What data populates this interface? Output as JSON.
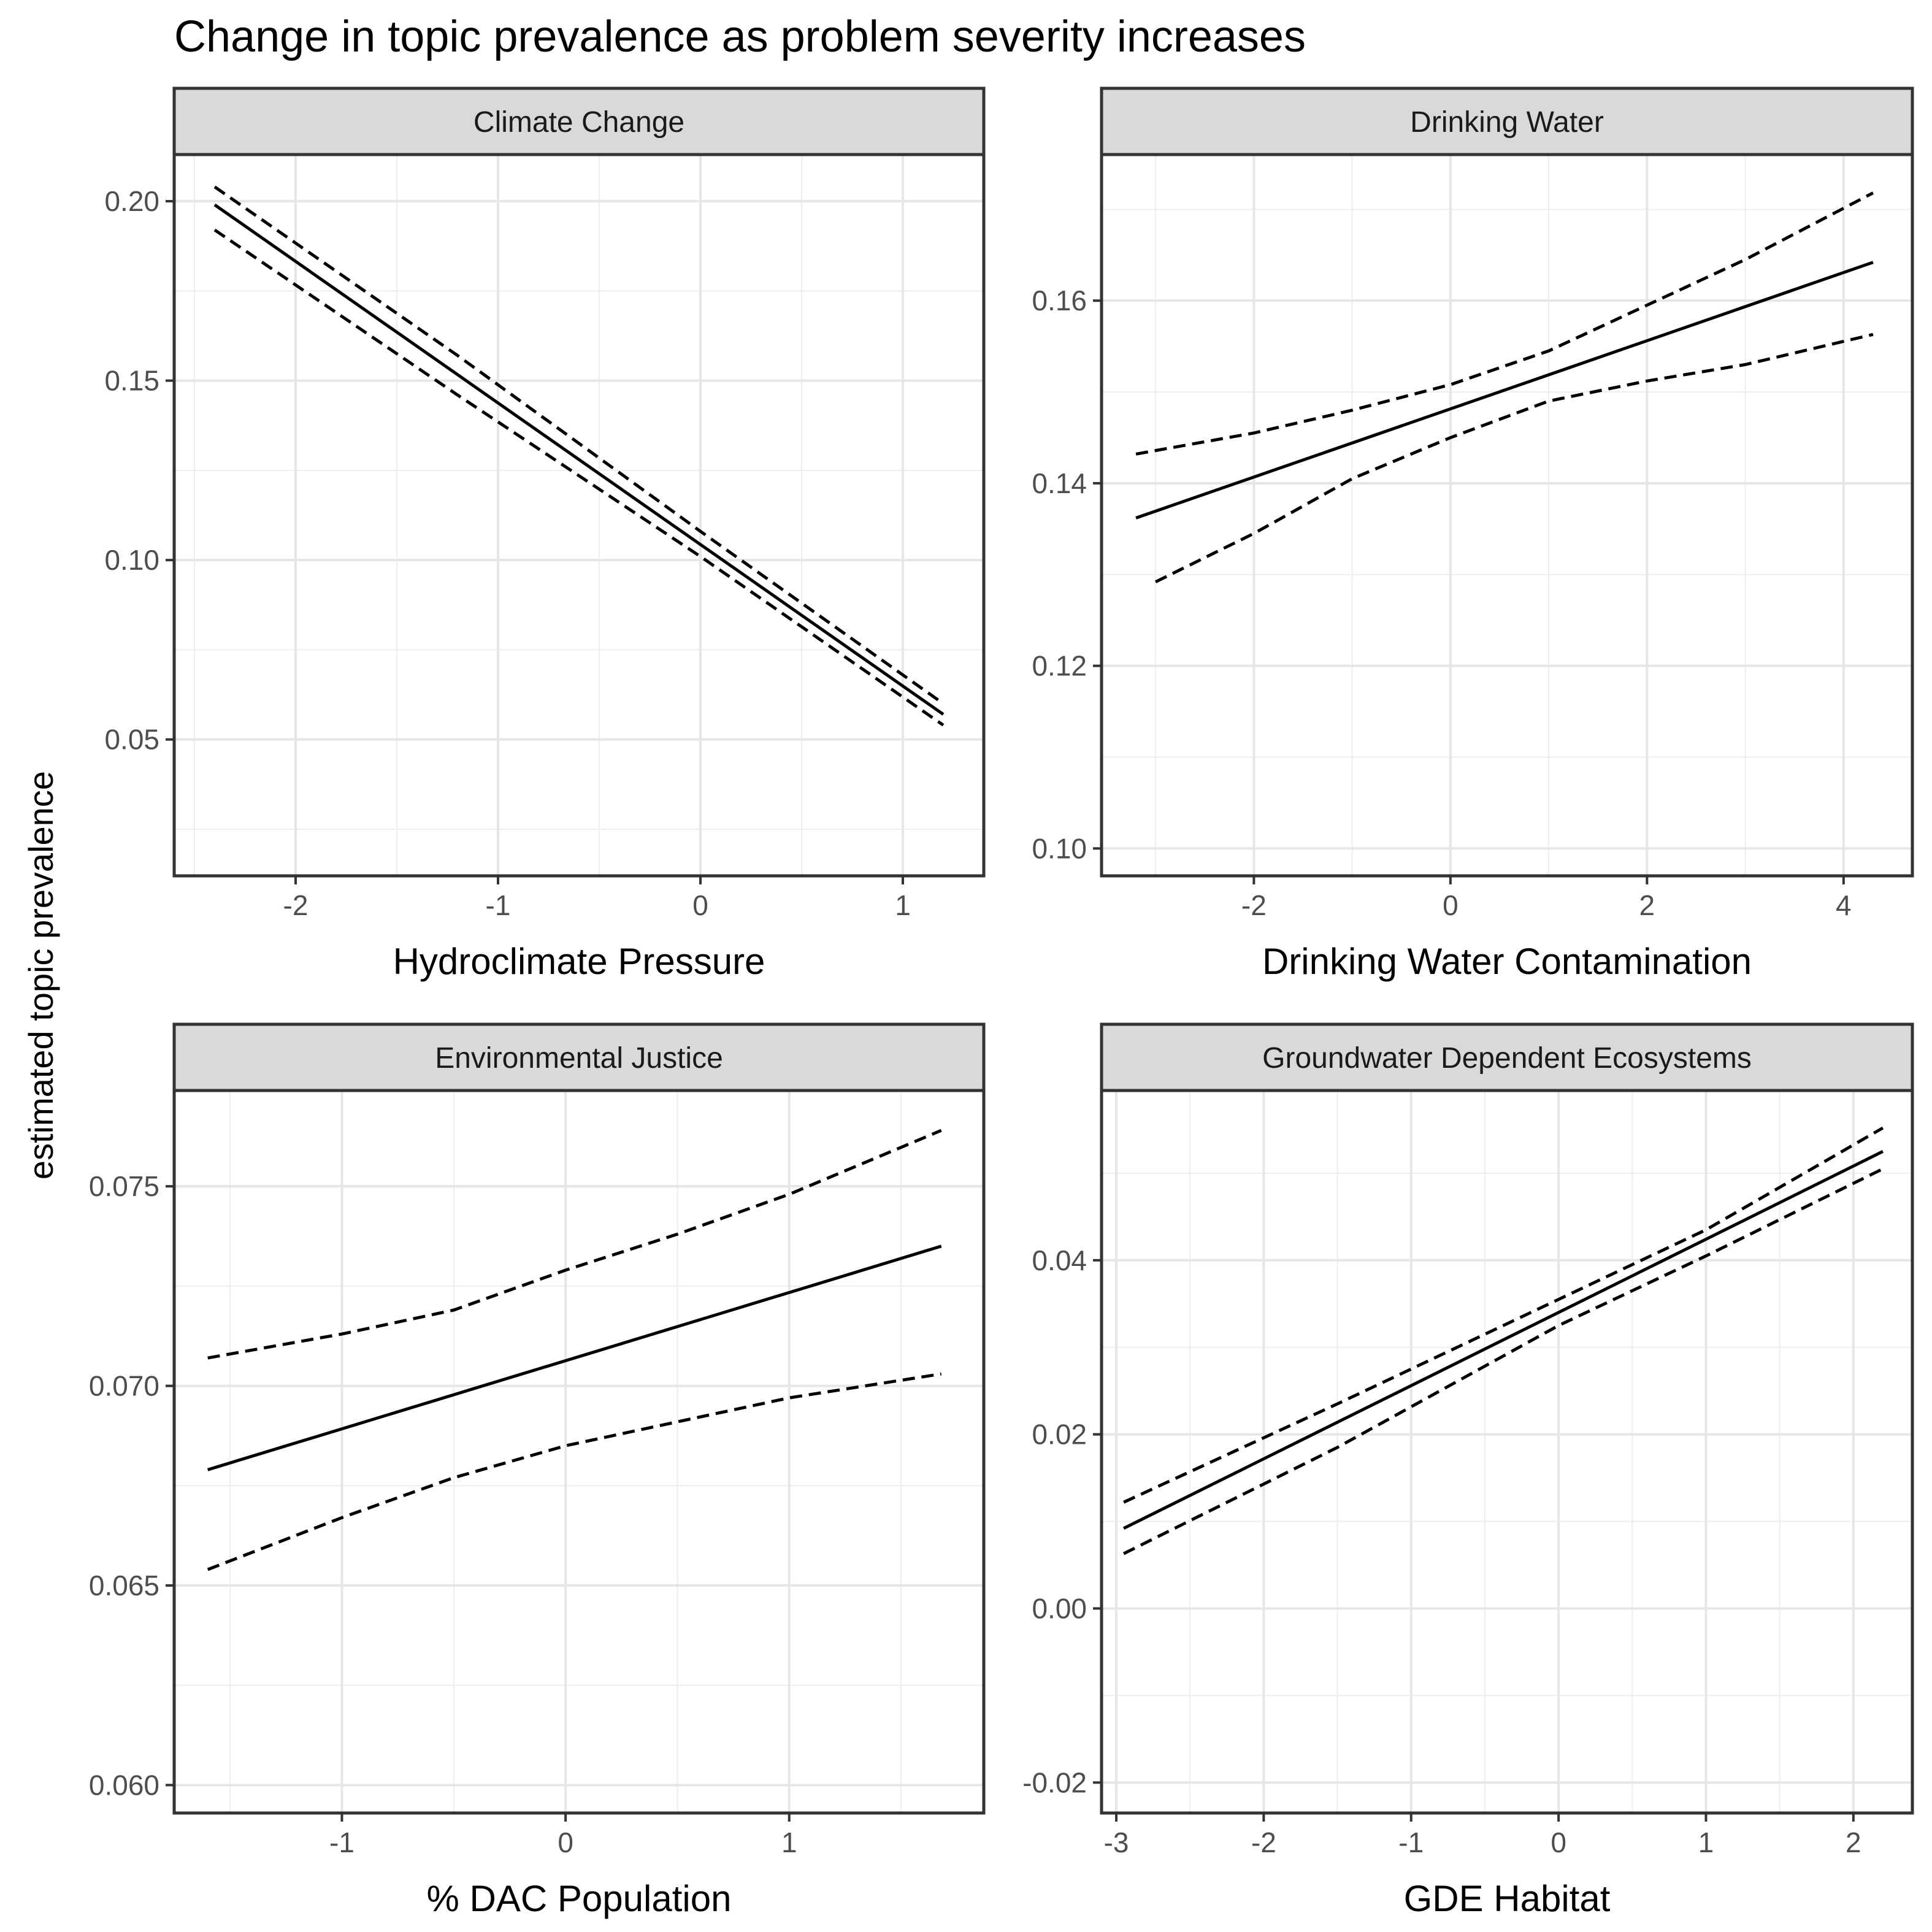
{
  "figure": {
    "title": "Change in topic prevalence as problem severity increases",
    "ylabel": "estimated topic prevalence"
  },
  "chart_data": [
    {
      "type": "line",
      "facet": "Climate Change",
      "xlabel": "Hydroclimate Pressure",
      "xlim": [
        -2.6,
        1.4
      ],
      "ylim": [
        0.012,
        0.213
      ],
      "xticks": [
        -2,
        -1,
        0,
        1
      ],
      "xtick_labels": [
        "-2",
        "-1",
        "0",
        "1"
      ],
      "yticks": [
        0.05,
        0.1,
        0.15,
        0.2
      ],
      "ytick_labels": [
        "0.05",
        "0.10",
        "0.15",
        "0.20"
      ],
      "grid": true,
      "series": [
        {
          "style": "solid",
          "x": [
            -2.4,
            1.2
          ],
          "y": [
            0.199,
            0.057
          ]
        },
        {
          "style": "dashed",
          "x": [
            -2.4,
            -1.2,
            0,
            1.2
          ],
          "y": [
            0.204,
            0.157,
            0.108,
            0.06
          ]
        },
        {
          "style": "dashed",
          "x": [
            -2.4,
            -1.2,
            0,
            1.2
          ],
          "y": [
            0.192,
            0.146,
            0.101,
            0.054
          ]
        }
      ]
    },
    {
      "type": "line",
      "facet": "Drinking Water",
      "xlabel": "Drinking Water Contamination",
      "xlim": [
        -3.55,
        4.7
      ],
      "ylim": [
        0.097,
        0.176
      ],
      "xticks": [
        -2,
        0,
        2,
        4
      ],
      "xtick_labels": [
        "-2",
        "0",
        "2",
        "4"
      ],
      "yticks": [
        0.1,
        0.12,
        0.14,
        0.16
      ],
      "ytick_labels": [
        "0.10",
        "0.12",
        "0.14",
        "0.16"
      ],
      "grid": true,
      "series": [
        {
          "style": "solid",
          "x": [
            -3.2,
            4.3
          ],
          "y": [
            0.1362,
            0.1642
          ]
        },
        {
          "style": "dashed",
          "x": [
            -3.2,
            -2,
            -1,
            0,
            1,
            2,
            3,
            4.3
          ],
          "y": [
            0.1432,
            0.1455,
            0.148,
            0.1508,
            0.1545,
            0.1595,
            0.1645,
            0.1718
          ]
        },
        {
          "style": "dashed",
          "x": [
            -3.0,
            -2,
            -1,
            0,
            1,
            2,
            3,
            4.3
          ],
          "y": [
            0.1292,
            0.1345,
            0.1405,
            0.145,
            0.149,
            0.1512,
            0.153,
            0.1563
          ]
        }
      ]
    },
    {
      "type": "line",
      "facet": "Environmental Justice",
      "xlabel": "% DAC Population",
      "xlim": [
        -1.75,
        1.87
      ],
      "ylim": [
        0.0593,
        0.0774
      ],
      "xticks": [
        -1,
        0,
        1
      ],
      "xtick_labels": [
        "-1",
        "0",
        "1"
      ],
      "yticks": [
        0.06,
        0.065,
        0.07,
        0.075
      ],
      "ytick_labels": [
        "0.060",
        "0.065",
        "0.070",
        "0.075"
      ],
      "grid": true,
      "series": [
        {
          "style": "solid",
          "x": [
            -1.6,
            1.68
          ],
          "y": [
            0.0679,
            0.0735
          ]
        },
        {
          "style": "dashed",
          "x": [
            -1.6,
            -1.0,
            -0.5,
            0,
            0.5,
            1.0,
            1.68
          ],
          "y": [
            0.0707,
            0.0713,
            0.0719,
            0.0729,
            0.0738,
            0.0748,
            0.0764
          ]
        },
        {
          "style": "dashed",
          "x": [
            -1.6,
            -1.0,
            -0.5,
            0,
            0.5,
            1.0,
            1.68
          ],
          "y": [
            0.0654,
            0.0667,
            0.0677,
            0.0685,
            0.0691,
            0.0697,
            0.0703
          ]
        }
      ]
    },
    {
      "type": "line",
      "facet": "Groundwater Dependent Ecosystems",
      "xlabel": "GDE Habitat",
      "xlim": [
        -3.1,
        2.4
      ],
      "ylim": [
        -0.0235,
        0.0595
      ],
      "xticks": [
        -3,
        -2,
        -1,
        0,
        1,
        2
      ],
      "xtick_labels": [
        "-3",
        "-2",
        "-1",
        "0",
        "1",
        "2"
      ],
      "yticks": [
        -0.02,
        0.0,
        0.02,
        0.04
      ],
      "ytick_labels": [
        "-0.02",
        "0.00",
        "0.02",
        "0.04"
      ],
      "grid": true,
      "series": [
        {
          "style": "solid",
          "x": [
            -2.95,
            2.2
          ],
          "y": [
            0.0092,
            0.0525
          ]
        },
        {
          "style": "dashed",
          "x": [
            -2.95,
            -1.5,
            0,
            1,
            2.2
          ],
          "y": [
            0.0122,
            0.0235,
            0.0355,
            0.0435,
            0.0552
          ]
        },
        {
          "style": "dashed",
          "x": [
            -2.95,
            -1.5,
            0,
            1,
            2.2
          ],
          "y": [
            0.0063,
            0.0185,
            0.0325,
            0.0405,
            0.0505
          ]
        }
      ]
    }
  ]
}
